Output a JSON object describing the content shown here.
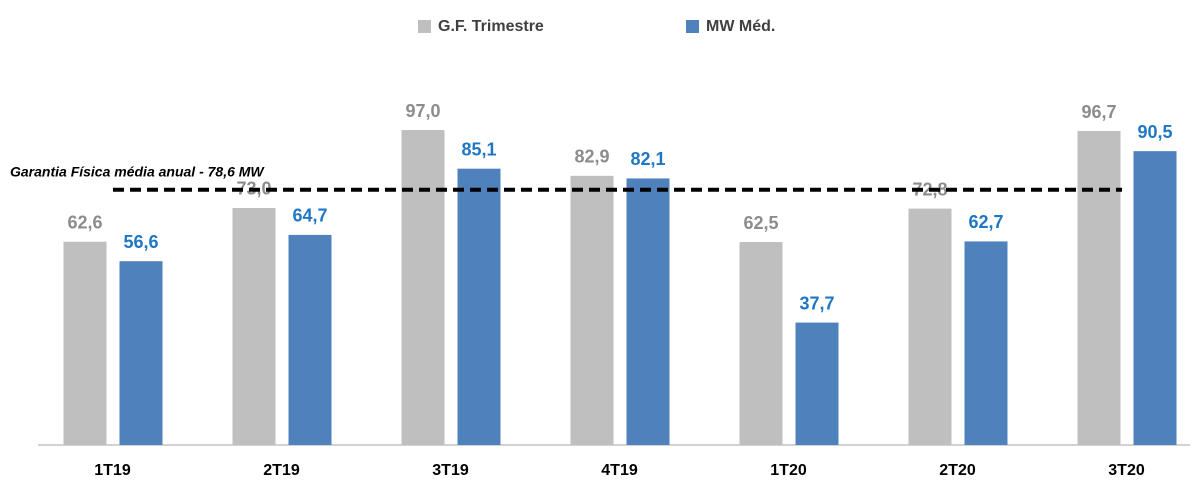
{
  "chart_data": {
    "type": "bar",
    "categories": [
      "1T19",
      "2T19",
      "3T19",
      "4T19",
      "1T20",
      "2T20",
      "3T20"
    ],
    "series": [
      {
        "name": "G.F. Trimestre",
        "color": "#bfbfbf",
        "label_color": "#8c8c8c",
        "values": [
          62.6,
          73.0,
          97.0,
          82.9,
          62.5,
          72.8,
          96.7
        ],
        "value_labels": [
          "62,6",
          "73,0",
          "97,0",
          "82,9",
          "62,5",
          "72,8",
          "96,7"
        ]
      },
      {
        "name": "MW Méd.",
        "color": "#4f81bd",
        "label_color": "#1f77c4",
        "values": [
          56.6,
          64.7,
          85.1,
          82.1,
          37.7,
          62.7,
          90.5
        ],
        "value_labels": [
          "56,6",
          "64,7",
          "85,1",
          "82,1",
          "37,7",
          "62,7",
          "90,5"
        ]
      }
    ],
    "reference_line": {
      "value": 78.6,
      "label": "Garantia Física média anual -  78,6 MW"
    },
    "ylim": [
      0,
      100
    ],
    "legend": "top"
  }
}
